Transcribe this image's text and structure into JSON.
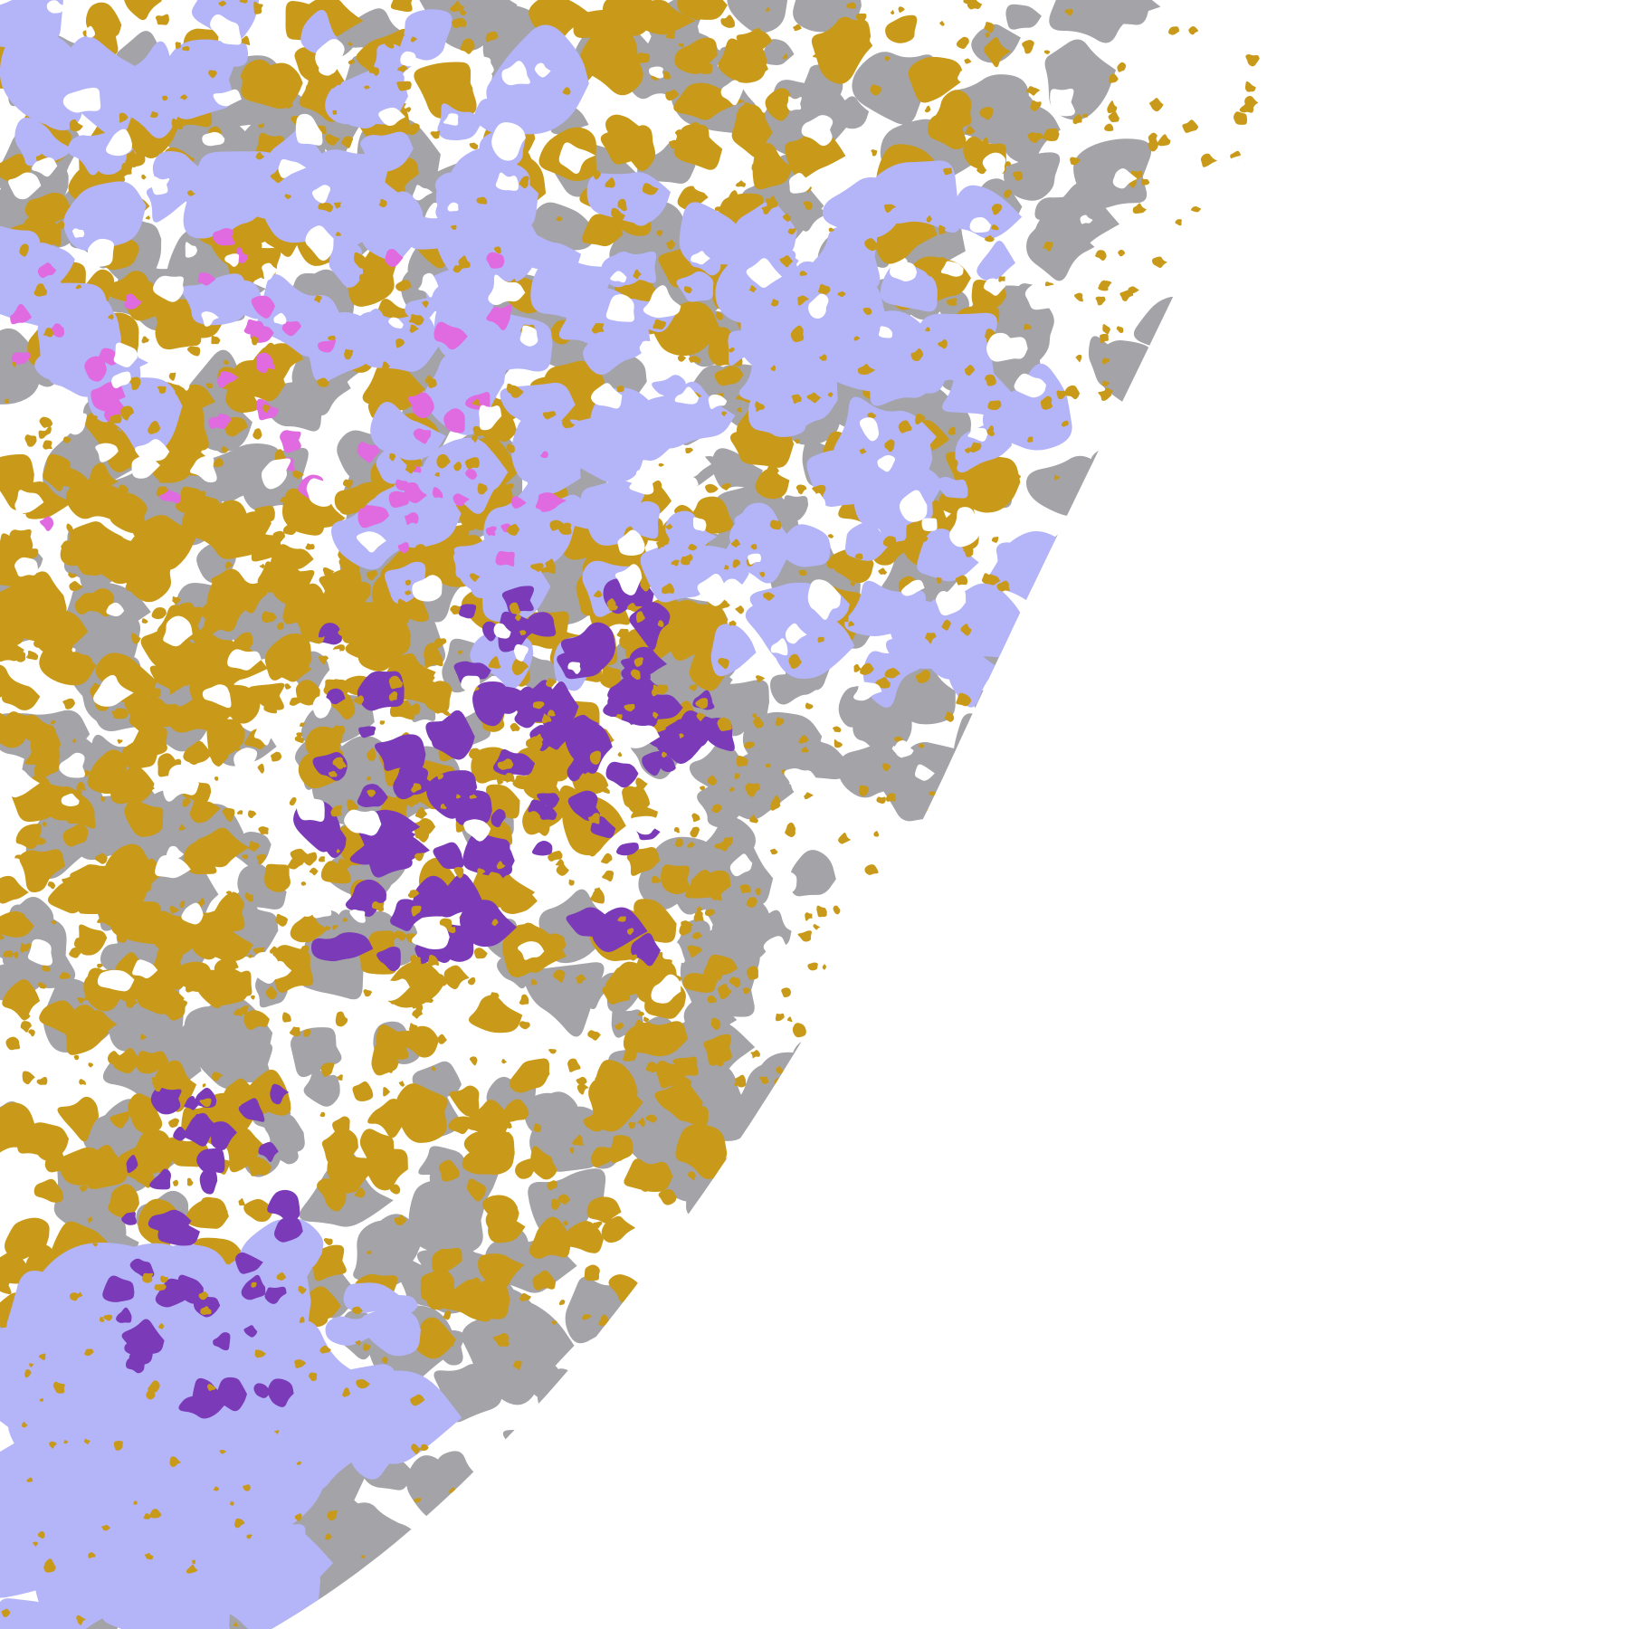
{
  "map": {
    "colors": {
      "background": "#ffffff",
      "gold": "#c99a1a",
      "gray": "#a3a3a8",
      "lavender": "#b4b4f8",
      "purple": "#7b3ab8",
      "magenta": "#e06be0"
    }
  }
}
